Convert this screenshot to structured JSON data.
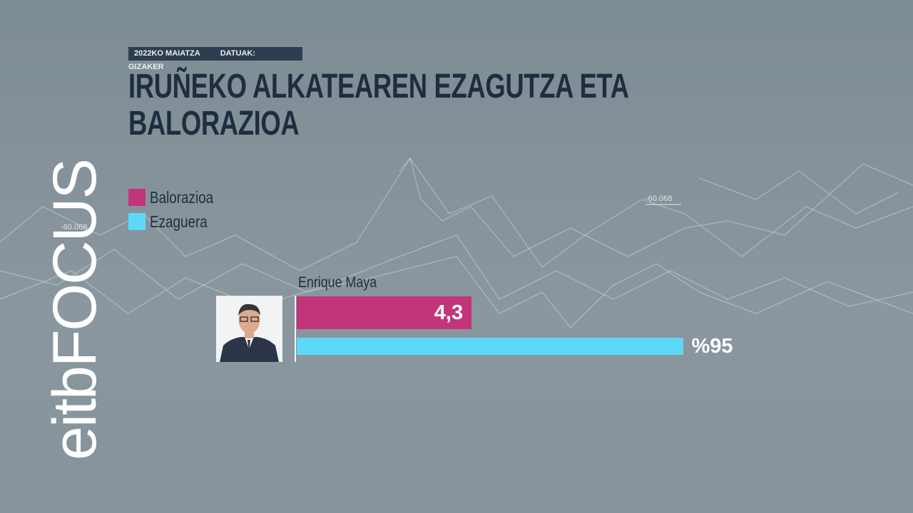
{
  "brand": "eitbFOCUS",
  "chart_data": {
    "type": "bar",
    "date_label": "2022KO MAIATZA",
    "source_label": "DATUAK: GIZAKER",
    "title": "IRUÑEKO ALKATEAREN EZAGUTZA ETA BALORAZIOA",
    "categories": [
      "Enrique Maya"
    ],
    "series": [
      {
        "name": "Balorazioa",
        "color": "#c2357a",
        "values": [
          4.3
        ],
        "value_labels": [
          "4,3"
        ],
        "xlim": [
          0,
          10
        ]
      },
      {
        "name": "Ezaguera",
        "color": "#5dd8f8",
        "values": [
          95
        ],
        "value_labels": [
          "%95"
        ],
        "xlim": [
          0,
          100
        ]
      }
    ]
  }
}
